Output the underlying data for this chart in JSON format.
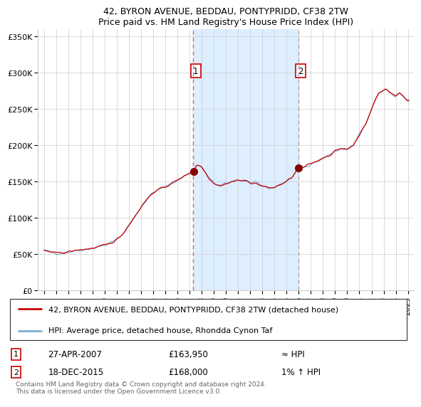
{
  "title": "42, BYRON AVENUE, BEDDAU, PONTYPRIDD, CF38 2TW",
  "subtitle": "Price paid vs. HM Land Registry's House Price Index (HPI)",
  "legend_line1": "42, BYRON AVENUE, BEDDAU, PONTYPRIDD, CF38 2TW (detached house)",
  "legend_line2": "HPI: Average price, detached house, Rhondda Cynon Taf",
  "transaction1_date": "27-APR-2007",
  "transaction1_price": 163950,
  "transaction1_note": "≈ HPI",
  "transaction2_date": "18-DEC-2015",
  "transaction2_price": 168000,
  "transaction2_note": "1% ↑ HPI",
  "footer": "Contains HM Land Registry data © Crown copyright and database right 2024.\nThis data is licensed under the Open Government Licence v3.0.",
  "line_color": "#cc0000",
  "hpi_line_color": "#7aadcf",
  "background_color": "#ffffff",
  "plot_bg_color": "#ffffff",
  "shade_color": "#ddeeff",
  "marker1_x": 2007.32,
  "marker2_x": 2015.96,
  "vline1_x": 2007.32,
  "vline2_x": 2015.96,
  "ylim_min": 0,
  "ylim_max": 360000,
  "xlim_min": 1994.5,
  "xlim_max": 2025.5,
  "yticks": [
    0,
    50000,
    100000,
    150000,
    200000,
    250000,
    300000,
    350000
  ],
  "ytick_labels": [
    "£0",
    "£50K",
    "£100K",
    "£150K",
    "£200K",
    "£250K",
    "£300K",
    "£350K"
  ],
  "xticks": [
    1995,
    1996,
    1997,
    1998,
    1999,
    2000,
    2001,
    2002,
    2003,
    2004,
    2005,
    2006,
    2007,
    2008,
    2009,
    2010,
    2011,
    2012,
    2013,
    2014,
    2015,
    2016,
    2017,
    2018,
    2019,
    2020,
    2021,
    2022,
    2023,
    2024,
    2025
  ],
  "anchor_x": [
    1995.0,
    1995.5,
    1996.0,
    1996.5,
    1997.0,
    1997.5,
    1998.0,
    1998.5,
    1999.0,
    1999.5,
    2000.0,
    2000.5,
    2001.0,
    2001.5,
    2002.0,
    2002.5,
    2003.0,
    2003.5,
    2004.0,
    2004.5,
    2005.0,
    2005.5,
    2006.0,
    2006.5,
    2007.0,
    2007.32,
    2007.6,
    2007.8,
    2008.0,
    2008.3,
    2008.6,
    2009.0,
    2009.3,
    2009.6,
    2010.0,
    2010.5,
    2011.0,
    2011.5,
    2012.0,
    2012.5,
    2013.0,
    2013.5,
    2014.0,
    2014.5,
    2015.0,
    2015.5,
    2015.96,
    2016.0,
    2016.5,
    2017.0,
    2017.5,
    2018.0,
    2018.5,
    2019.0,
    2019.5,
    2020.0,
    2020.5,
    2021.0,
    2021.5,
    2022.0,
    2022.3,
    2022.6,
    2022.9,
    2023.2,
    2023.5,
    2023.8,
    2024.0,
    2024.3,
    2024.6,
    2024.9,
    2025.0
  ],
  "anchor_y": [
    55000,
    53000,
    51000,
    52000,
    53000,
    54500,
    56000,
    57000,
    58000,
    60000,
    62000,
    65000,
    70000,
    78000,
    90000,
    102000,
    115000,
    126000,
    135000,
    139000,
    143000,
    147000,
    152000,
    157000,
    162000,
    163950,
    173000,
    172000,
    170000,
    163000,
    155000,
    148000,
    146000,
    144000,
    147000,
    150000,
    152000,
    151000,
    149000,
    147000,
    144000,
    141000,
    142000,
    146000,
    150000,
    157000,
    168000,
    168000,
    170000,
    175000,
    178000,
    183000,
    186000,
    192000,
    195000,
    195000,
    200000,
    215000,
    228000,
    250000,
    262000,
    272000,
    275000,
    278000,
    274000,
    270000,
    268000,
    272000,
    268000,
    263000,
    262000
  ]
}
